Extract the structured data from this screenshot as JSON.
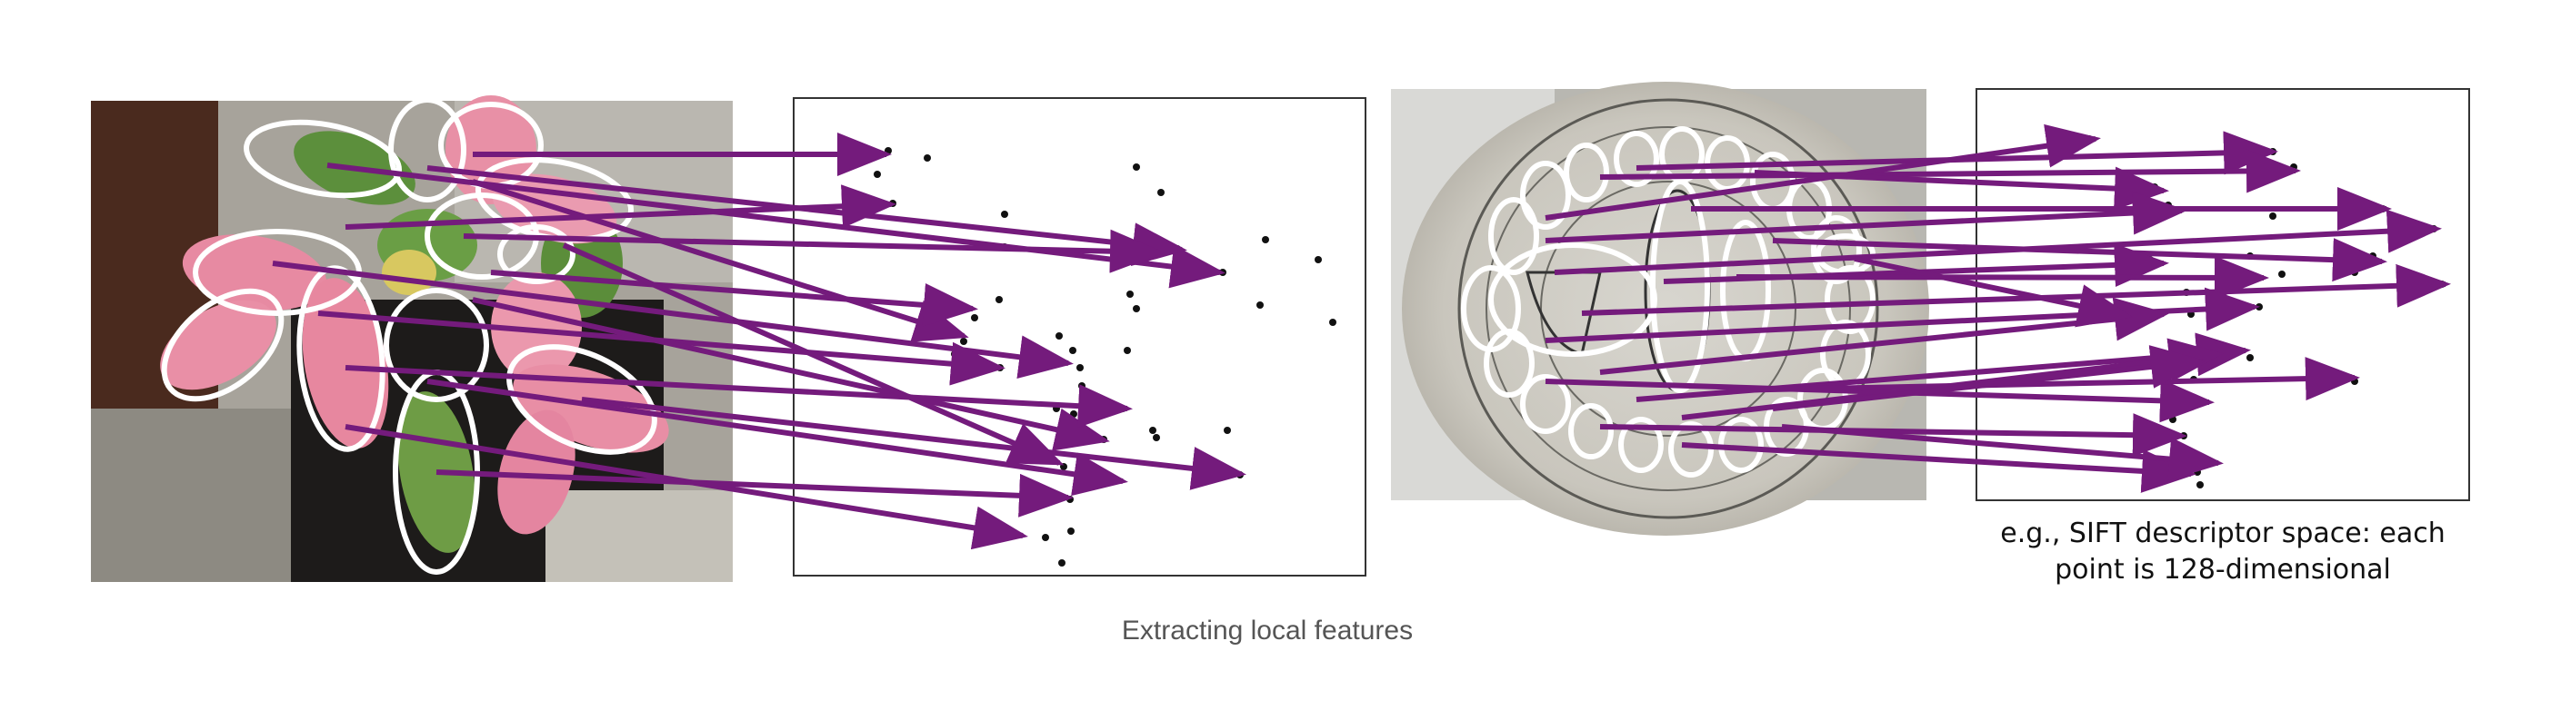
{
  "figure": {
    "caption": "Extracting local features",
    "descriptor_caption_line1": "e.g., SIFT descriptor space: each",
    "descriptor_caption_line2": "point is 128-dimensional"
  },
  "colors": {
    "arrow": "#741b7c",
    "ellipse": "#ffffff",
    "point": "#111111",
    "box_border": "#333333",
    "caption": "#555555"
  },
  "panels": [
    {
      "name": "poinsettia-photo",
      "depicts": "poinsettia plant photograph with detected regions"
    },
    {
      "name": "descriptor-space-left",
      "depicts": "feature space for poinsettia"
    },
    {
      "name": "seal-photo",
      "depicts": "circular seal with harp photograph with detected regions"
    },
    {
      "name": "descriptor-space-right",
      "depicts": "feature space for seal"
    }
  ]
}
